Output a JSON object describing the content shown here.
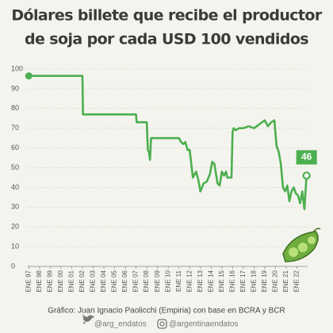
{
  "chart_data": {
    "type": "line",
    "title": [
      "Dólares billete que recibe el productor",
      "de soja por cada USD 100 vendidos"
    ],
    "source": "Gráfico: Juan Ignacio Paolicchi (Empiria) con base en BCRA y BCR",
    "footer": {
      "twitter": "@arg_endatos",
      "instagram": "@argentinaendatos"
    },
    "color": "#4caf50",
    "grid": true,
    "x": [
      1997.0,
      2002.0,
      2002.05,
      2007.0,
      2007.05,
      2008.0,
      2008.1,
      2008.2,
      2008.3,
      2008.4,
      2008.6,
      2011.0,
      2011.2,
      2011.4,
      2011.6,
      2011.8,
      2012.0,
      2012.3,
      2012.6,
      2012.8,
      2013.0,
      2013.3,
      2013.6,
      2013.9,
      2014.1,
      2014.3,
      2014.6,
      2014.8,
      2015.0,
      2015.2,
      2015.4,
      2015.5,
      2015.7,
      2015.9,
      2016.0,
      2016.1,
      2016.3,
      2016.6,
      2017.0,
      2017.5,
      2018.0,
      2018.5,
      2019.0,
      2019.3,
      2019.6,
      2019.9,
      2020.1,
      2020.3,
      2020.5,
      2020.7,
      2020.9,
      2021.1,
      2021.3,
      2021.5,
      2021.7,
      2021.9,
      2022.1,
      2022.3,
      2022.5,
      2022.7,
      2022.9
    ],
    "values": [
      96.5,
      96.5,
      77,
      77,
      73,
      73,
      59,
      58,
      54,
      65,
      65,
      65,
      63,
      62,
      63,
      59,
      59,
      45,
      48,
      44,
      38,
      42,
      43,
      47,
      53,
      52,
      42,
      41,
      48,
      46,
      48,
      45,
      45,
      45,
      68,
      70,
      69,
      70,
      70,
      71,
      70,
      72,
      74,
      71,
      73,
      74,
      61,
      58,
      52,
      40,
      38,
      41,
      33,
      38,
      40,
      37,
      36,
      32,
      38,
      29,
      46
    ],
    "xlim": [
      1996.9,
      2023.0
    ],
    "ylim": [
      0,
      100
    ],
    "yticks": [
      0,
      10,
      20,
      30,
      40,
      50,
      60,
      70,
      80,
      90,
      100
    ],
    "xticks": [
      {
        "value": 1997,
        "label": "ENE 97"
      },
      {
        "value": 1998,
        "label": "ENE 98"
      },
      {
        "value": 1999,
        "label": "ENE 99"
      },
      {
        "value": 2000,
        "label": "ENE 00"
      },
      {
        "value": 2001,
        "label": "ENE 01"
      },
      {
        "value": 2002,
        "label": "ENE 02"
      },
      {
        "value": 2003,
        "label": "ENE 03"
      },
      {
        "value": 2004,
        "label": "ENE 04"
      },
      {
        "value": 2005,
        "label": "ENE 05"
      },
      {
        "value": 2006,
        "label": "ENE 06"
      },
      {
        "value": 2007,
        "label": "ENE 07"
      },
      {
        "value": 2008,
        "label": "ENE 08"
      },
      {
        "value": 2009,
        "label": "ENE 09"
      },
      {
        "value": 2010,
        "label": "ENE 10"
      },
      {
        "value": 2011,
        "label": "ENE 11"
      },
      {
        "value": 2012,
        "label": "ENE 12"
      },
      {
        "value": 2013,
        "label": "ENE 13"
      },
      {
        "value": 2014,
        "label": "ENE 14"
      },
      {
        "value": 2015,
        "label": "ENE 15"
      },
      {
        "value": 2016,
        "label": "ENE 16"
      },
      {
        "value": 2017,
        "label": "ENE 17"
      },
      {
        "value": 2018,
        "label": "ENE 18"
      },
      {
        "value": 2019,
        "label": "ENE 19"
      },
      {
        "value": 2020,
        "label": "ENE 20"
      },
      {
        "value": 2021,
        "label": "ENE 21"
      },
      {
        "value": 2022,
        "label": "ENE 22"
      }
    ]
  }
}
